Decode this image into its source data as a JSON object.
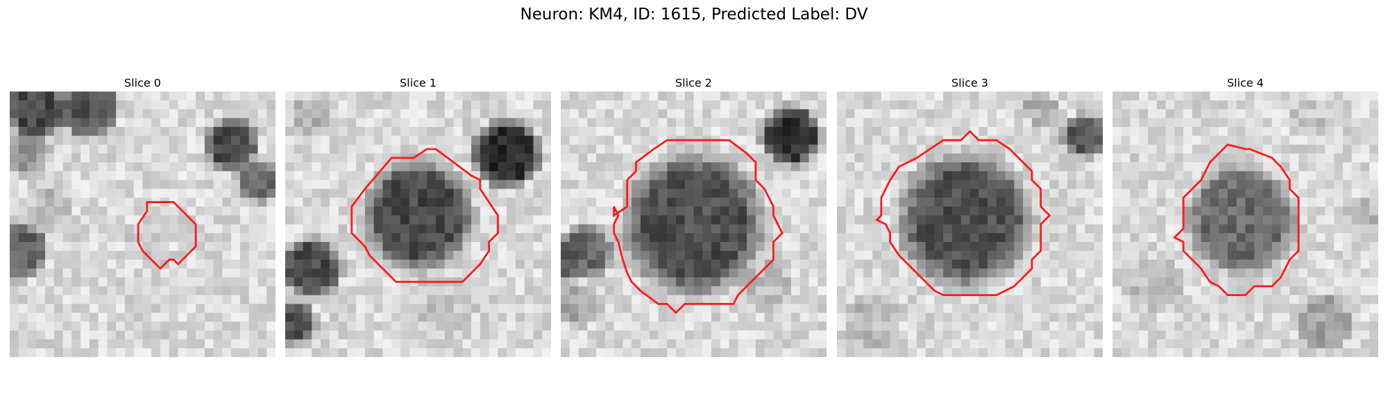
{
  "figure": {
    "title": "Neuron: KM4, ID: 1615, Predicted Label: DV",
    "contour_color": "#ff1a1a"
  },
  "panels": [
    {
      "title": "Slice 0"
    },
    {
      "title": "Slice 1"
    },
    {
      "title": "Slice 2"
    },
    {
      "title": "Slice 3"
    },
    {
      "title": "Slice 4"
    }
  ]
}
